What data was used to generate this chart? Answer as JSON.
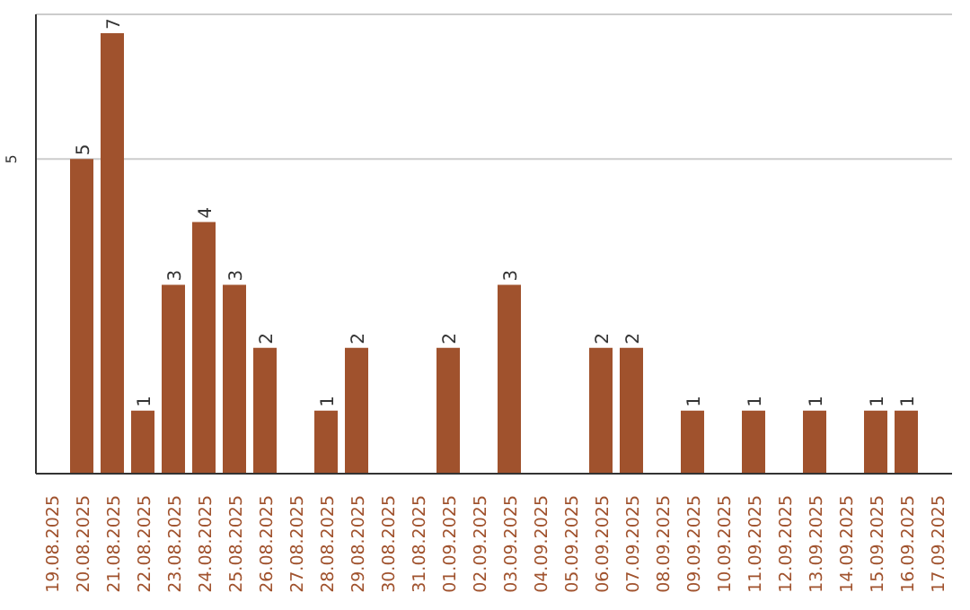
{
  "chart_data": {
    "type": "bar",
    "categories": [
      "19.08.2025",
      "20.08.2025",
      "21.08.2025",
      "22.08.2025",
      "23.08.2025",
      "24.08.2025",
      "25.08.2025",
      "26.08.2025",
      "27.08.2025",
      "28.08.2025",
      "29.08.2025",
      "30.08.2025",
      "31.08.2025",
      "01.09.2025",
      "02.09.2025",
      "03.09.2025",
      "04.09.2025",
      "05.09.2025",
      "06.09.2025",
      "07.09.2025",
      "08.09.2025",
      "09.09.2025",
      "10.09.2025",
      "11.09.2025",
      "12.09.2025",
      "13.09.2025",
      "14.09.2025",
      "15.09.2025",
      "16.09.2025",
      "17.09.2025"
    ],
    "values": [
      0,
      5,
      7,
      1,
      3,
      4,
      3,
      2,
      0,
      1,
      2,
      0,
      0,
      2,
      0,
      3,
      0,
      0,
      2,
      2,
      0,
      1,
      0,
      1,
      0,
      1,
      0,
      1,
      1,
      0
    ],
    "value_labels": [
      null,
      "5",
      "7",
      "1",
      "3",
      "4",
      "3",
      "2",
      null,
      "1",
      "2",
      null,
      null,
      "2",
      null,
      "3",
      null,
      null,
      "2",
      "2",
      null,
      "1",
      null,
      "1",
      null,
      "1",
      null,
      "1",
      "1",
      null
    ],
    "color": "#a0522d",
    "ylim": [
      0,
      7.3
    ],
    "yticks": [
      5
    ],
    "grid": "y"
  }
}
